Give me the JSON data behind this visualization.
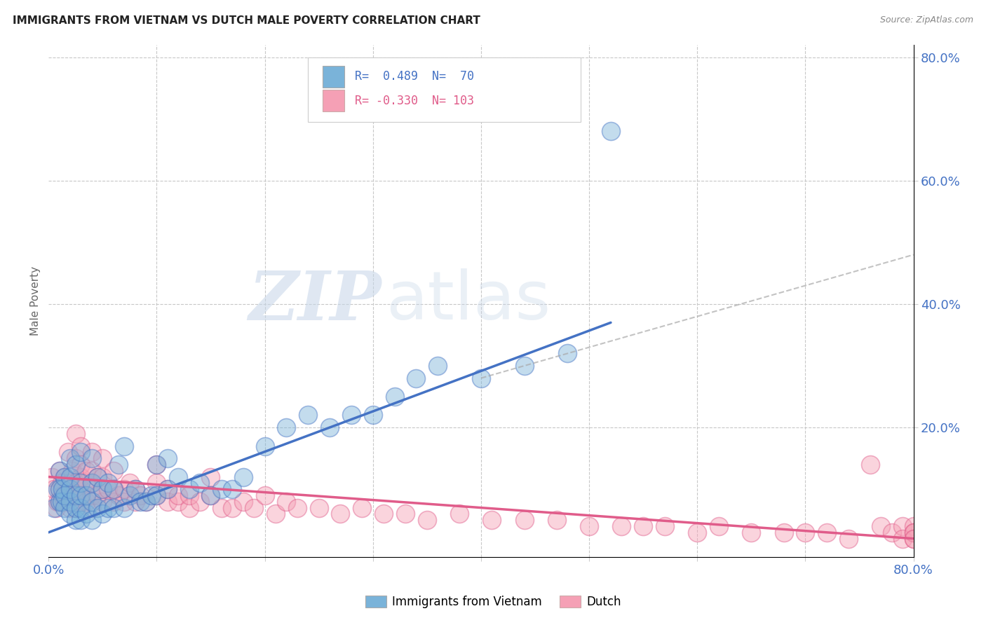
{
  "title": "IMMIGRANTS FROM VIETNAM VS DUTCH MALE POVERTY CORRELATION CHART",
  "source": "Source: ZipAtlas.com",
  "ylabel": "Male Poverty",
  "xlim": [
    0.0,
    0.8
  ],
  "ylim": [
    -0.01,
    0.82
  ],
  "legend_label1": "Immigrants from Vietnam",
  "legend_label2": "Dutch",
  "color_blue": "#7ab3d9",
  "color_pink": "#f5a0b5",
  "color_blue_dark": "#4472c4",
  "color_pink_dark": "#e05c8a",
  "color_axis_text": "#4472c4",
  "color_ylabel": "#666666",
  "background_color": "#ffffff",
  "grid_color": "#c8c8c8",
  "watermark_zip": "ZIP",
  "watermark_atlas": "atlas",
  "vietnam_x": [
    0.005,
    0.008,
    0.01,
    0.01,
    0.01,
    0.012,
    0.013,
    0.015,
    0.015,
    0.015,
    0.02,
    0.02,
    0.02,
    0.02,
    0.02,
    0.025,
    0.025,
    0.025,
    0.025,
    0.03,
    0.03,
    0.03,
    0.03,
    0.03,
    0.035,
    0.035,
    0.04,
    0.04,
    0.04,
    0.04,
    0.045,
    0.045,
    0.05,
    0.05,
    0.055,
    0.055,
    0.06,
    0.06,
    0.065,
    0.07,
    0.07,
    0.075,
    0.08,
    0.085,
    0.09,
    0.095,
    0.1,
    0.1,
    0.11,
    0.11,
    0.12,
    0.13,
    0.14,
    0.15,
    0.16,
    0.17,
    0.18,
    0.2,
    0.22,
    0.24,
    0.26,
    0.28,
    0.3,
    0.32,
    0.34,
    0.36,
    0.4,
    0.44,
    0.48,
    0.52
  ],
  "vietnam_y": [
    0.07,
    0.1,
    0.08,
    0.1,
    0.13,
    0.08,
    0.1,
    0.07,
    0.09,
    0.12,
    0.06,
    0.08,
    0.1,
    0.12,
    0.15,
    0.05,
    0.07,
    0.09,
    0.14,
    0.05,
    0.07,
    0.09,
    0.11,
    0.16,
    0.06,
    0.09,
    0.05,
    0.08,
    0.11,
    0.15,
    0.07,
    0.12,
    0.06,
    0.1,
    0.07,
    0.11,
    0.07,
    0.1,
    0.14,
    0.07,
    0.17,
    0.09,
    0.1,
    0.08,
    0.08,
    0.09,
    0.09,
    0.14,
    0.1,
    0.15,
    0.12,
    0.1,
    0.11,
    0.09,
    0.1,
    0.1,
    0.12,
    0.17,
    0.2,
    0.22,
    0.2,
    0.22,
    0.22,
    0.25,
    0.28,
    0.3,
    0.28,
    0.3,
    0.32,
    0.68
  ],
  "dutch_x": [
    0.003,
    0.005,
    0.007,
    0.008,
    0.01,
    0.01,
    0.01,
    0.012,
    0.013,
    0.015,
    0.015,
    0.018,
    0.02,
    0.02,
    0.02,
    0.022,
    0.025,
    0.025,
    0.025,
    0.025,
    0.025,
    0.03,
    0.03,
    0.03,
    0.03,
    0.03,
    0.035,
    0.035,
    0.035,
    0.04,
    0.04,
    0.04,
    0.04,
    0.04,
    0.045,
    0.045,
    0.05,
    0.05,
    0.05,
    0.05,
    0.055,
    0.06,
    0.06,
    0.06,
    0.065,
    0.07,
    0.07,
    0.075,
    0.08,
    0.08,
    0.085,
    0.09,
    0.1,
    0.1,
    0.1,
    0.11,
    0.11,
    0.12,
    0.12,
    0.13,
    0.13,
    0.14,
    0.15,
    0.15,
    0.16,
    0.17,
    0.18,
    0.19,
    0.2,
    0.21,
    0.22,
    0.23,
    0.25,
    0.27,
    0.29,
    0.31,
    0.33,
    0.35,
    0.38,
    0.41,
    0.44,
    0.47,
    0.5,
    0.53,
    0.55,
    0.57,
    0.6,
    0.62,
    0.65,
    0.68,
    0.7,
    0.72,
    0.74,
    0.76,
    0.77,
    0.78,
    0.79,
    0.79,
    0.8,
    0.8,
    0.8,
    0.8,
    0.8
  ],
  "dutch_y": [
    0.12,
    0.1,
    0.07,
    0.08,
    0.13,
    0.1,
    0.08,
    0.11,
    0.09,
    0.12,
    0.08,
    0.16,
    0.09,
    0.11,
    0.07,
    0.13,
    0.07,
    0.09,
    0.11,
    0.15,
    0.19,
    0.08,
    0.1,
    0.12,
    0.14,
    0.17,
    0.08,
    0.11,
    0.13,
    0.07,
    0.09,
    0.11,
    0.13,
    0.16,
    0.09,
    0.12,
    0.08,
    0.1,
    0.12,
    0.15,
    0.1,
    0.08,
    0.1,
    0.13,
    0.09,
    0.08,
    0.1,
    0.11,
    0.08,
    0.1,
    0.09,
    0.08,
    0.09,
    0.11,
    0.14,
    0.08,
    0.1,
    0.08,
    0.09,
    0.07,
    0.09,
    0.08,
    0.09,
    0.12,
    0.07,
    0.07,
    0.08,
    0.07,
    0.09,
    0.06,
    0.08,
    0.07,
    0.07,
    0.06,
    0.07,
    0.06,
    0.06,
    0.05,
    0.06,
    0.05,
    0.05,
    0.05,
    0.04,
    0.04,
    0.04,
    0.04,
    0.03,
    0.04,
    0.03,
    0.03,
    0.03,
    0.03,
    0.02,
    0.14,
    0.04,
    0.03,
    0.04,
    0.02,
    0.04,
    0.03,
    0.02,
    0.03,
    0.02
  ],
  "vietnam_line_x": [
    0.0,
    0.52
  ],
  "vietnam_line_y": [
    0.03,
    0.37
  ],
  "dutch_line_x": [
    0.0,
    0.8
  ],
  "dutch_line_y": [
    0.12,
    0.02
  ],
  "dashed_line_x": [
    0.4,
    0.8
  ],
  "dashed_line_y": [
    0.28,
    0.48
  ]
}
